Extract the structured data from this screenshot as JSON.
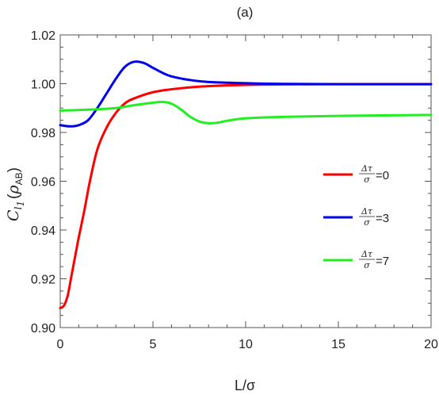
{
  "chart_data": {
    "type": "line",
    "title": "(a)",
    "xlabel": "L/σ",
    "ylabel": {
      "main": "C",
      "sub_letter": "l",
      "sub_index": "1",
      "open": "(",
      "rho": "ρ",
      "rho_sub": "AB",
      "close": ")"
    },
    "xlim": [
      0,
      20
    ],
    "ylim": [
      0.9,
      1.02
    ],
    "xticks": [
      0,
      5,
      10,
      15,
      20
    ],
    "xtick_labels": [
      "0",
      "5",
      "10",
      "15",
      "20"
    ],
    "yticks": [
      0.9,
      0.92,
      0.94,
      0.96,
      0.98,
      1.0,
      1.02
    ],
    "ytick_labels": [
      "0.90",
      "0.92",
      "0.94",
      "0.96",
      "0.98",
      "1.00",
      "1.02"
    ],
    "grid": false,
    "legend_position": "right",
    "series": [
      {
        "legend_num": "Δτ",
        "legend_den": "σ",
        "legend_value": "=0",
        "color": "#ff0000",
        "points": [
          [
            0,
            0.908
          ],
          [
            0.2,
            0.909
          ],
          [
            0.4,
            0.913
          ],
          [
            0.6,
            0.921
          ],
          [
            0.8,
            0.929
          ],
          [
            1.0,
            0.937
          ],
          [
            1.3,
            0.948
          ],
          [
            1.6,
            0.96
          ],
          [
            2.0,
            0.973
          ],
          [
            2.5,
            0.982
          ],
          [
            3.0,
            0.988
          ],
          [
            3.5,
            0.992
          ],
          [
            4.0,
            0.994
          ],
          [
            5.0,
            0.9965
          ],
          [
            6.0,
            0.9977
          ],
          [
            7.0,
            0.9985
          ],
          [
            8.0,
            0.999
          ],
          [
            10.0,
            0.9995
          ],
          [
            12.0,
            0.9997
          ],
          [
            15.0,
            0.9998
          ],
          [
            20.0,
            0.9998
          ]
        ]
      },
      {
        "legend_num": "Δτ",
        "legend_den": "σ",
        "legend_value": "=3",
        "color": "#0000ee",
        "points": [
          [
            0,
            0.983
          ],
          [
            0.5,
            0.9825
          ],
          [
            1.0,
            0.983
          ],
          [
            1.5,
            0.985
          ],
          [
            2.0,
            0.99
          ],
          [
            2.5,
            0.996
          ],
          [
            3.0,
            1.002
          ],
          [
            3.5,
            1.007
          ],
          [
            4.0,
            1.009
          ],
          [
            4.5,
            1.0085
          ],
          [
            5.0,
            1.0065
          ],
          [
            5.5,
            1.0045
          ],
          [
            6.0,
            1.003
          ],
          [
            7.0,
            1.0015
          ],
          [
            8.0,
            1.0007
          ],
          [
            10.0,
            1.0002
          ],
          [
            12.0,
            0.9999
          ],
          [
            15.0,
            0.9998
          ],
          [
            20.0,
            0.9998
          ]
        ]
      },
      {
        "legend_num": "Δτ",
        "legend_den": "σ",
        "legend_value": "=7",
        "color": "#22ee22",
        "points": [
          [
            0,
            0.989
          ],
          [
            1.0,
            0.9892
          ],
          [
            2.0,
            0.9895
          ],
          [
            3.0,
            0.99
          ],
          [
            4.0,
            0.9912
          ],
          [
            5.0,
            0.9922
          ],
          [
            5.5,
            0.9925
          ],
          [
            6.0,
            0.9918
          ],
          [
            6.5,
            0.9895
          ],
          [
            7.0,
            0.9865
          ],
          [
            7.5,
            0.9845
          ],
          [
            8.0,
            0.9838
          ],
          [
            8.5,
            0.984
          ],
          [
            9.0,
            0.9848
          ],
          [
            10.0,
            0.9858
          ],
          [
            12.0,
            0.9864
          ],
          [
            15.0,
            0.9868
          ],
          [
            20.0,
            0.9872
          ]
        ]
      }
    ]
  }
}
